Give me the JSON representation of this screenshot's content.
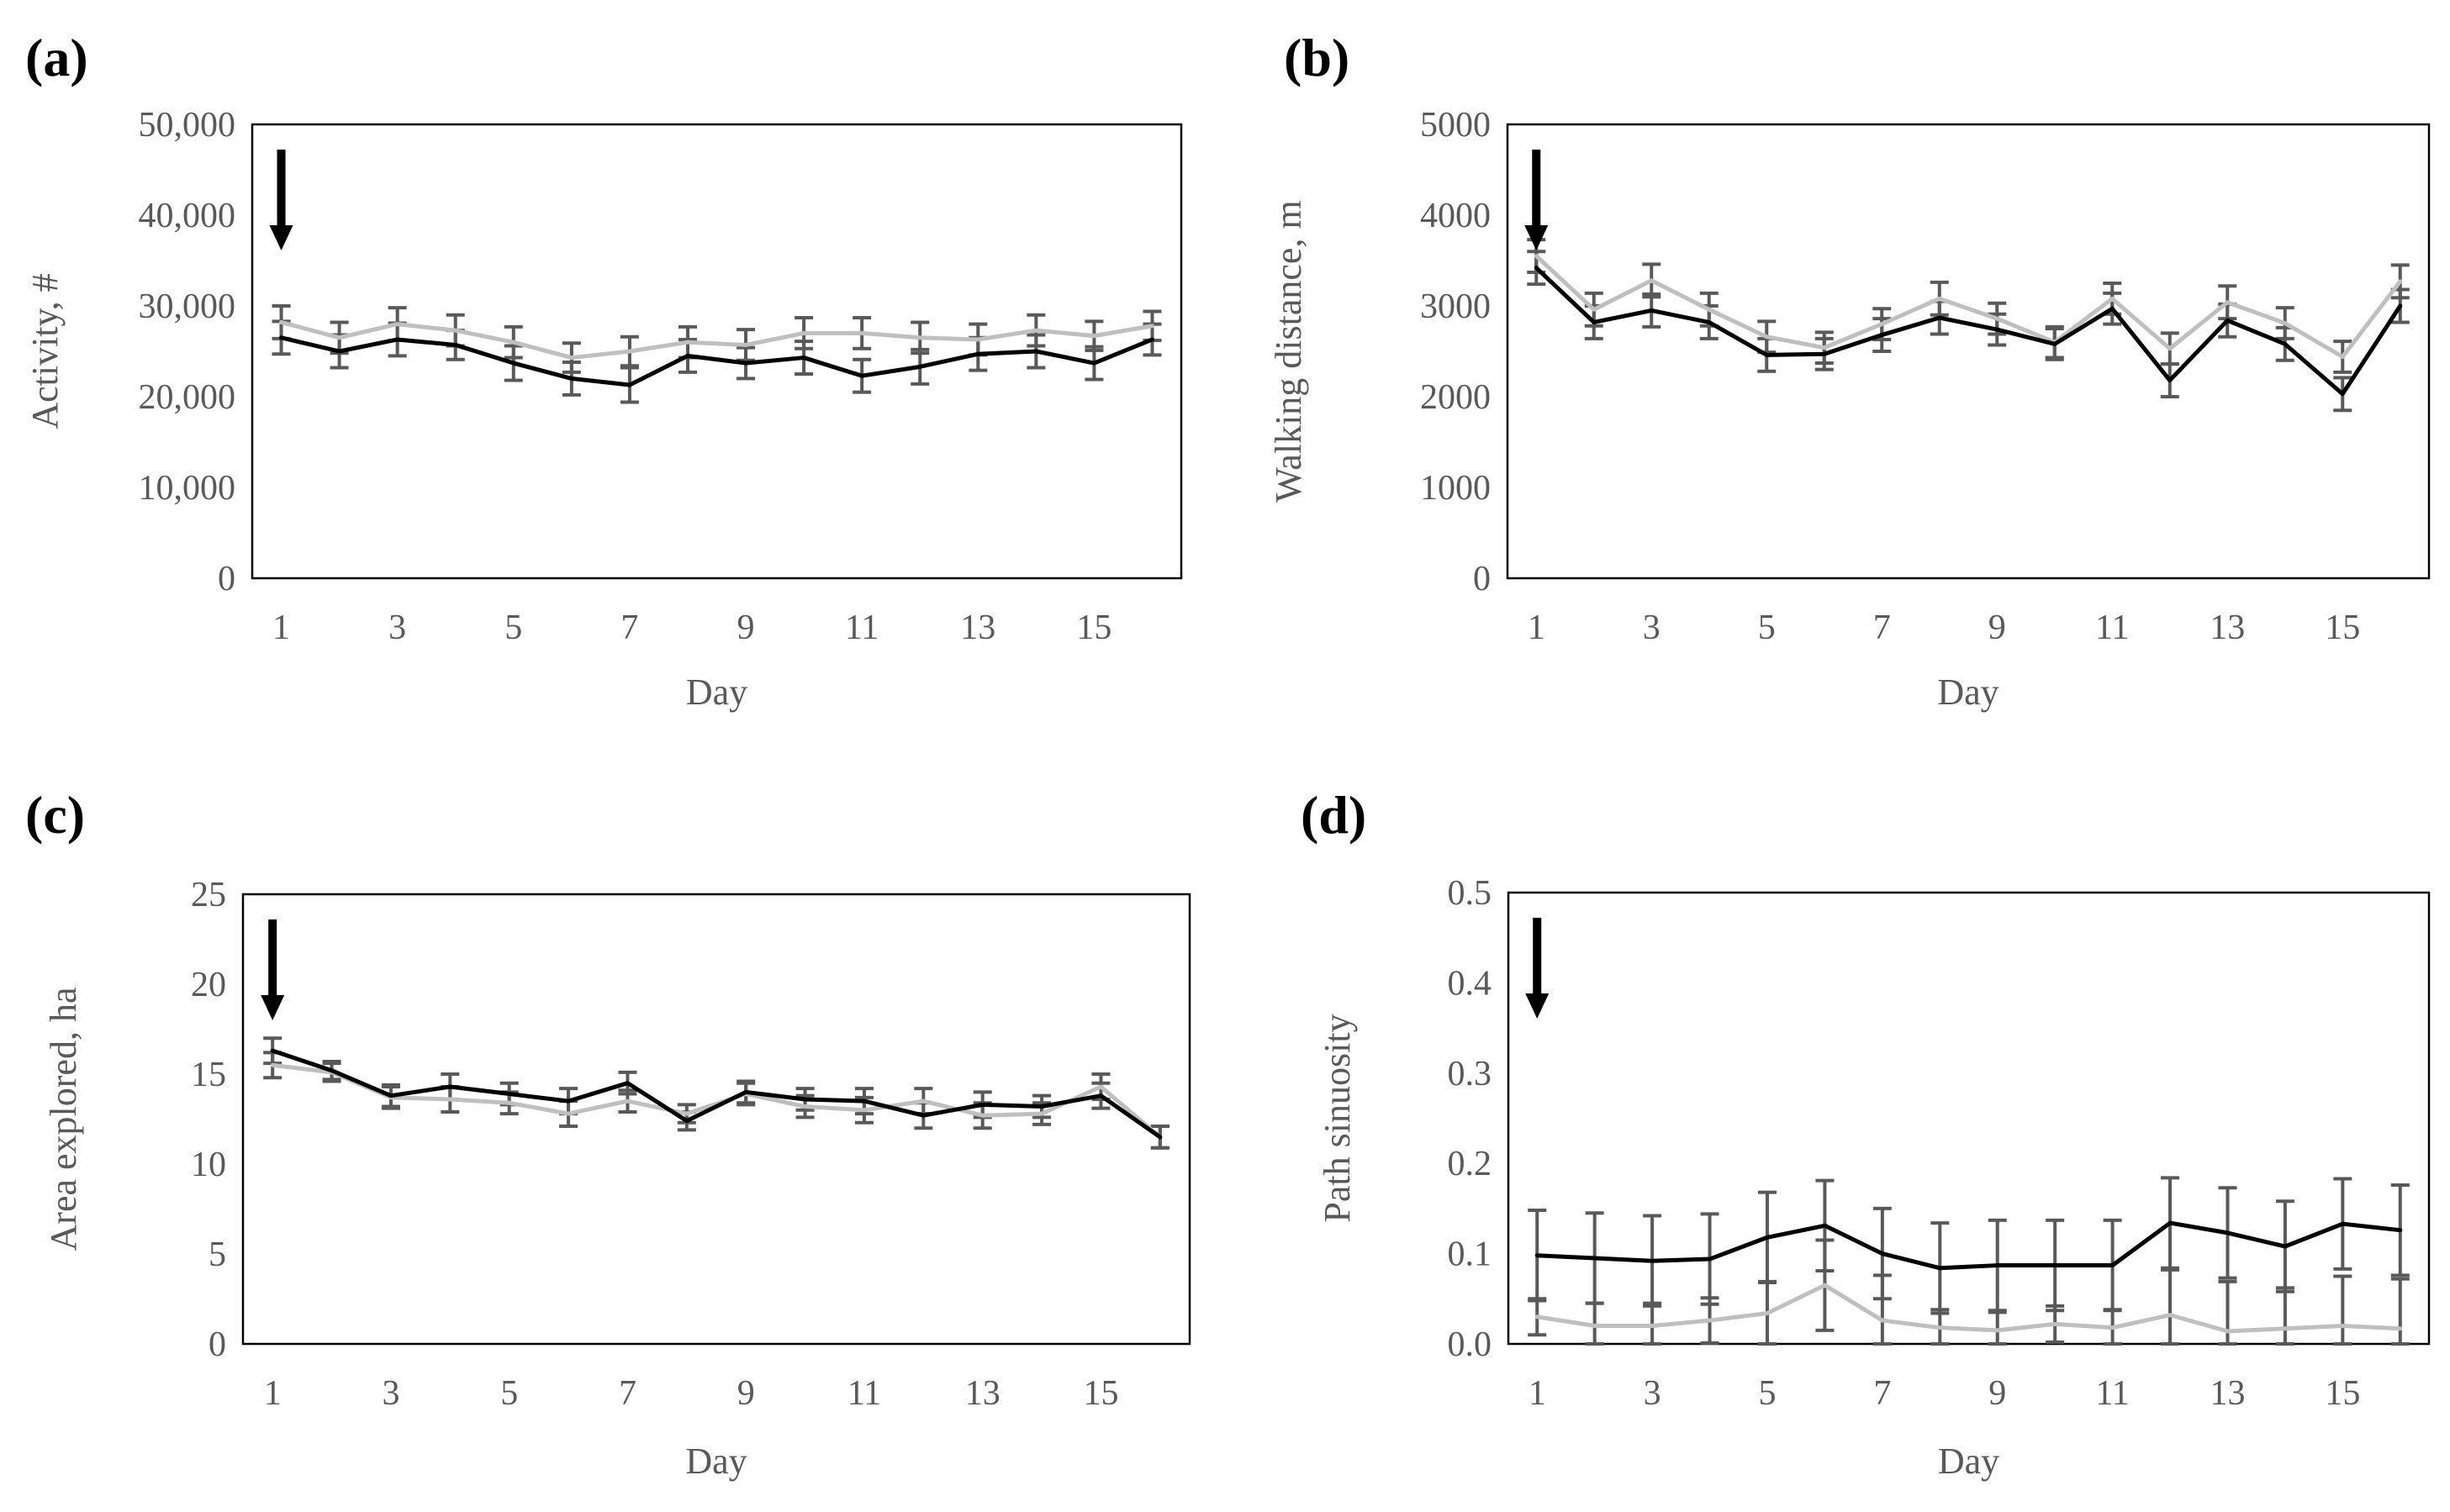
{
  "chart_data": [
    {
      "type": "line",
      "panel": "(a)",
      "xlabel": "Day",
      "ylabel": "Activity, #",
      "ylim": [
        0,
        50000
      ],
      "yticks": [
        0,
        10000,
        20000,
        30000,
        40000,
        50000
      ],
      "ytick_labels": [
        "0",
        "10,000",
        "20,000",
        "30,000",
        "40,000",
        "50,000"
      ],
      "xlim": [
        0.5,
        16.5
      ],
      "xticks": [
        1,
        3,
        5,
        7,
        9,
        11,
        13,
        15
      ],
      "xtick_labels": [
        "1",
        "3",
        "5",
        "7",
        "9",
        "11",
        "13",
        "15"
      ],
      "arrow_at_day": 1,
      "x": [
        1,
        2,
        3,
        4,
        5,
        6,
        7,
        8,
        9,
        10,
        11,
        12,
        13,
        14,
        15,
        16
      ],
      "series": [
        {
          "name": "black",
          "color": "#000000",
          "values": [
            26500,
            25000,
            26300,
            25700,
            23700,
            22000,
            21300,
            24500,
            23700,
            24300,
            22300,
            23300,
            24700,
            25000,
            23700,
            26300
          ],
          "errors": [
            1800,
            1800,
            1800,
            1600,
            1900,
            1800,
            1900,
            1800,
            1700,
            1800,
            1800,
            1900,
            1800,
            1800,
            1800,
            1700
          ]
        },
        {
          "name": "gray",
          "color": "#bfbfbf",
          "values": [
            28200,
            26500,
            28000,
            27300,
            26000,
            24300,
            25000,
            26000,
            25700,
            27000,
            27000,
            26500,
            26300,
            27300,
            26700,
            27800
          ],
          "errors": [
            1800,
            1700,
            1800,
            1700,
            1700,
            1600,
            1600,
            1700,
            1700,
            1700,
            1700,
            1700,
            1700,
            1700,
            1600,
            1600
          ]
        }
      ]
    },
    {
      "type": "line",
      "panel": "(b)",
      "xlabel": "Day",
      "ylabel": "Walking distance, m",
      "ylim": [
        0,
        5000
      ],
      "yticks": [
        0,
        1000,
        2000,
        3000,
        4000,
        5000
      ],
      "ytick_labels": [
        "0",
        "1000",
        "2000",
        "3000",
        "4000",
        "5000"
      ],
      "xlim": [
        0.5,
        16.5
      ],
      "xticks": [
        1,
        3,
        5,
        7,
        9,
        11,
        13,
        15
      ],
      "xtick_labels": [
        "1",
        "3",
        "5",
        "7",
        "9",
        "11",
        "13",
        "15"
      ],
      "arrow_at_day": 1,
      "x": [
        1,
        2,
        3,
        4,
        5,
        6,
        7,
        8,
        9,
        10,
        11,
        12,
        13,
        14,
        15,
        16
      ],
      "series": [
        {
          "name": "black",
          "color": "#000000",
          "values": [
            3420,
            2820,
            2950,
            2820,
            2460,
            2470,
            2680,
            2870,
            2740,
            2580,
            2970,
            2180,
            2840,
            2580,
            2030,
            3000
          ],
          "errors": [
            180,
            180,
            180,
            180,
            180,
            170,
            180,
            180,
            170,
            170,
            170,
            180,
            180,
            180,
            180,
            180
          ]
        },
        {
          "name": "gray",
          "color": "#bfbfbf",
          "values": [
            3550,
            2960,
            3280,
            2960,
            2660,
            2540,
            2800,
            3080,
            2860,
            2600,
            3080,
            2530,
            3040,
            2810,
            2440,
            3270
          ],
          "errors": [
            180,
            180,
            180,
            180,
            170,
            170,
            170,
            180,
            170,
            170,
            170,
            170,
            180,
            170,
            170,
            180
          ]
        }
      ]
    },
    {
      "type": "line",
      "panel": "(c)",
      "xlabel": "Day",
      "ylabel": "Area explored, ha",
      "ylim": [
        0,
        25
      ],
      "yticks": [
        0,
        5,
        10,
        15,
        20,
        25
      ],
      "ytick_labels": [
        "0",
        "5",
        "10",
        "15",
        "20",
        "25"
      ],
      "xlim": [
        0.5,
        16.5
      ],
      "xticks": [
        1,
        3,
        5,
        7,
        9,
        11,
        13,
        15
      ],
      "xtick_labels": [
        "1",
        "3",
        "5",
        "7",
        "9",
        "11",
        "13",
        "15"
      ],
      "arrow_at_day": 1,
      "x": [
        1,
        2,
        3,
        4,
        5,
        6,
        7,
        8,
        9,
        10,
        11,
        12,
        13,
        14,
        15,
        16
      ],
      "series": [
        {
          "name": "black",
          "color": "#000000",
          "values": [
            16.3,
            15.2,
            13.8,
            14.3,
            13.9,
            13.5,
            14.5,
            12.4,
            14.0,
            13.6,
            13.5,
            12.7,
            13.3,
            13.2,
            13.8,
            11.5
          ],
          "errors": [
            0.7,
            0.5,
            0.6,
            0.7,
            0.6,
            0.7,
            0.6,
            0.5,
            0.6,
            0.6,
            0.7,
            0.7,
            0.7,
            0.6,
            0.7,
            0.6
          ]
        },
        {
          "name": "gray",
          "color": "#bfbfbf",
          "values": [
            15.5,
            15.1,
            13.7,
            13.6,
            13.4,
            12.8,
            13.5,
            12.8,
            13.9,
            13.2,
            13.0,
            13.5,
            12.7,
            12.8,
            14.3,
            11.5
          ],
          "errors": [
            0.7,
            0.5,
            0.6,
            0.7,
            0.6,
            0.7,
            0.6,
            0.5,
            0.6,
            0.6,
            0.7,
            0.7,
            0.7,
            0.6,
            0.7,
            0.6
          ]
        }
      ]
    },
    {
      "type": "line",
      "panel": "(d)",
      "xlabel": "Day",
      "ylabel": "Path sinuosity",
      "ylim": [
        0,
        0.5
      ],
      "yticks": [
        0,
        0.1,
        0.2,
        0.3,
        0.4,
        0.5
      ],
      "ytick_labels": [
        "0.0",
        "0.1",
        "0.2",
        "0.3",
        "0.4",
        "0.5"
      ],
      "xlim": [
        0.5,
        16.5
      ],
      "xticks": [
        1,
        3,
        5,
        7,
        9,
        11,
        13,
        15
      ],
      "xtick_labels": [
        "1",
        "3",
        "5",
        "7",
        "9",
        "11",
        "13",
        "15"
      ],
      "arrow_at_day": 1,
      "x": [
        1,
        2,
        3,
        4,
        5,
        6,
        7,
        8,
        9,
        10,
        11,
        12,
        13,
        14,
        15,
        16
      ],
      "series": [
        {
          "name": "black",
          "color": "#000000",
          "values": [
            0.098,
            0.095,
            0.092,
            0.094,
            0.118,
            0.131,
            0.1,
            0.084,
            0.087,
            0.087,
            0.087,
            0.134,
            0.123,
            0.108,
            0.133,
            0.126
          ],
          "errors": [
            0.05,
            0.05,
            0.05,
            0.05,
            0.05,
            0.05,
            0.05,
            0.05,
            0.05,
            0.05,
            0.05,
            0.05,
            0.05,
            0.05,
            0.05,
            0.05
          ]
        },
        {
          "name": "gray",
          "color": "#bfbfbf",
          "values": [
            0.03,
            0.02,
            0.02,
            0.026,
            0.034,
            0.065,
            0.026,
            0.018,
            0.015,
            0.022,
            0.018,
            0.032,
            0.014,
            0.017,
            0.02,
            0.017
          ],
          "errors": [
            0.02,
            0.025,
            0.025,
            0.025,
            0.035,
            0.05,
            0.05,
            0.02,
            0.02,
            0.02,
            0.02,
            0.05,
            0.055,
            0.045,
            0.055,
            0.055
          ]
        }
      ]
    }
  ]
}
